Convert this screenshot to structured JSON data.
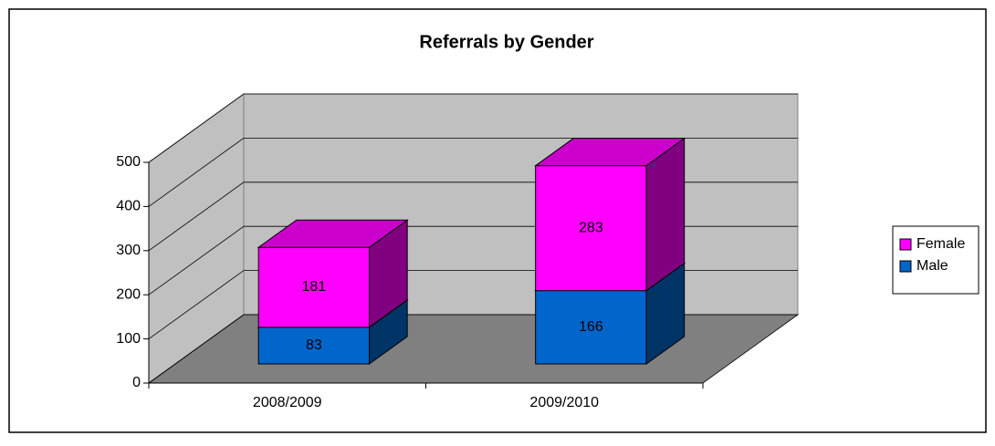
{
  "chart_data": {
    "type": "bar3d_stacked",
    "title": "Referrals by Gender",
    "categories": [
      "2008/2009",
      "2009/2010"
    ],
    "series": [
      {
        "name": "Male",
        "color": "#0066cc",
        "values": [
          83,
          166
        ]
      },
      {
        "name": "Female",
        "color": "#ff00ff",
        "values": [
          181,
          283
        ]
      }
    ],
    "ylim": [
      0,
      500
    ],
    "yticks": [
      0,
      100,
      200,
      300,
      400,
      500
    ],
    "grid": true,
    "legend": "right"
  }
}
